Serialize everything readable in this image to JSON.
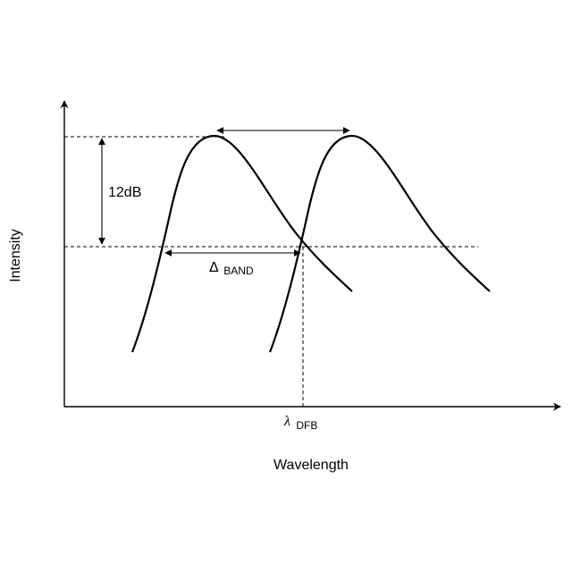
{
  "diagram": {
    "x_axis_label": "Wavelength",
    "y_axis_label": "Intensity",
    "gain_drop_label": "12dB",
    "band_symbol": "Δ",
    "band_subscript": "BAND",
    "dfb_symbol": "λ",
    "dfb_subscript": "DFB"
  },
  "colors": {
    "stroke": "#000000",
    "background": "#ffffff"
  }
}
